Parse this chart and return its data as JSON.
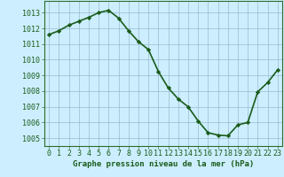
{
  "x": [
    0,
    1,
    2,
    3,
    4,
    5,
    6,
    7,
    8,
    9,
    10,
    11,
    12,
    13,
    14,
    15,
    16,
    17,
    18,
    19,
    20,
    21,
    22,
    23
  ],
  "y": [
    1011.6,
    1011.85,
    1012.2,
    1012.45,
    1012.7,
    1013.0,
    1013.15,
    1012.65,
    1011.85,
    1011.15,
    1010.65,
    1009.25,
    1008.2,
    1007.5,
    1007.0,
    1006.1,
    1005.35,
    1005.2,
    1005.15,
    1005.85,
    1006.0,
    1007.95,
    1008.55,
    1009.35
  ],
  "line_color": "#1a5c1a",
  "marker": "D",
  "marker_size": 2.2,
  "background_color": "#cceeff",
  "grid_color": "#99bbcc",
  "ylabel_ticks": [
    1005,
    1006,
    1007,
    1008,
    1009,
    1010,
    1011,
    1012,
    1013
  ],
  "ylim": [
    1004.5,
    1013.75
  ],
  "xlim": [
    -0.5,
    23.5
  ],
  "xlabel_label": "Graphe pression niveau de la mer (hPa)",
  "xlabel_fontsize": 6.5,
  "tick_fontsize": 6.0,
  "line_width": 1.2,
  "axes_color": "#1a5c1a",
  "spine_color": "#2d6e2d"
}
